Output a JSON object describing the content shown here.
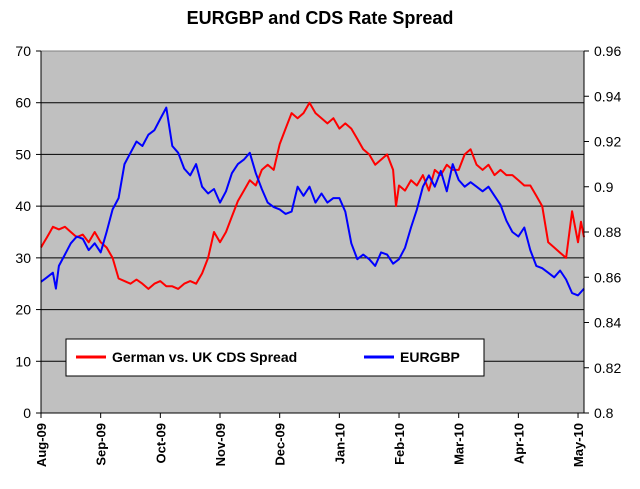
{
  "chart_data": {
    "type": "line",
    "title": "EURGBP and CDS Rate Spread",
    "categories": [
      "Aug-09",
      "Sep-09",
      "Oct-09",
      "Nov-09",
      "Dec-09",
      "Jan-10",
      "Feb-10",
      "Mar-10",
      "Apr-10",
      "May-10"
    ],
    "y_left": {
      "min": 0,
      "max": 70,
      "ticks": [
        "0",
        "10",
        "20",
        "30",
        "40",
        "50",
        "60",
        "70"
      ]
    },
    "y_right": {
      "min": 0.8,
      "max": 0.96,
      "ticks": [
        "0.8",
        "0.82",
        "0.84",
        "0.86",
        "0.88",
        "0.9",
        "0.92",
        "0.94",
        "0.96"
      ]
    },
    "grid": true,
    "legend_position": "bottom-left",
    "series": [
      {
        "name": "German vs. UK CDS Spread",
        "axis": "left",
        "color": "#ff0000",
        "x": [
          0,
          0.05,
          0.1,
          0.15,
          0.2,
          0.3,
          0.4,
          0.5,
          0.6,
          0.7,
          0.8,
          0.9,
          1.0,
          1.1,
          1.2,
          1.3,
          1.4,
          1.5,
          1.6,
          1.7,
          1.8,
          1.9,
          2.0,
          2.1,
          2.2,
          2.3,
          2.4,
          2.5,
          2.6,
          2.7,
          2.8,
          2.9,
          3.0,
          3.1,
          3.2,
          3.3,
          3.4,
          3.5,
          3.6,
          3.7,
          3.8,
          3.9,
          4.0,
          4.1,
          4.2,
          4.3,
          4.4,
          4.5,
          4.6,
          4.7,
          4.8,
          4.9,
          5.0,
          5.1,
          5.2,
          5.3,
          5.4,
          5.5,
          5.6,
          5.7,
          5.8,
          5.9,
          5.95,
          6.0,
          6.1,
          6.2,
          6.3,
          6.4,
          6.5,
          6.6,
          6.7,
          6.8,
          6.9,
          7.0,
          7.1,
          7.2,
          7.3,
          7.4,
          7.5,
          7.6,
          7.7,
          7.8,
          7.9,
          8.0,
          8.1,
          8.2,
          8.3,
          8.4,
          8.5,
          8.6,
          8.7,
          8.8,
          8.9,
          9.0,
          9.05,
          9.1
        ],
        "values": [
          32,
          33,
          34,
          35,
          36,
          35.5,
          36,
          35,
          34,
          34.5,
          33,
          35,
          33,
          32,
          30,
          26,
          25.5,
          25,
          25.8,
          25,
          24,
          25,
          25.5,
          24.5,
          24.5,
          24,
          25,
          25.5,
          25,
          27,
          30,
          35,
          33,
          35,
          38,
          41,
          43,
          45,
          44,
          47,
          48,
          47,
          52,
          55,
          58,
          57,
          58,
          60,
          58,
          57,
          56,
          57,
          55,
          56,
          55,
          53,
          51,
          50,
          48,
          49,
          50,
          47,
          40,
          44,
          43,
          45,
          44,
          46,
          43,
          47,
          46,
          48,
          47,
          47,
          50,
          51,
          48,
          47,
          48,
          46,
          47,
          46,
          46,
          45,
          44,
          44,
          42,
          40,
          33,
          32,
          31,
          30,
          39,
          33,
          37,
          34
        ]
      },
      {
        "name": "EURGBP",
        "axis": "right",
        "color": "#0000ff",
        "x": [
          0,
          0.1,
          0.2,
          0.25,
          0.3,
          0.4,
          0.5,
          0.6,
          0.7,
          0.8,
          0.9,
          1.0,
          1.1,
          1.2,
          1.3,
          1.4,
          1.5,
          1.6,
          1.7,
          1.8,
          1.9,
          2.0,
          2.1,
          2.2,
          2.3,
          2.4,
          2.5,
          2.6,
          2.7,
          2.8,
          2.9,
          3.0,
          3.1,
          3.2,
          3.3,
          3.4,
          3.5,
          3.6,
          3.7,
          3.8,
          3.9,
          4.0,
          4.1,
          4.2,
          4.3,
          4.4,
          4.5,
          4.6,
          4.7,
          4.8,
          4.9,
          5.0,
          5.1,
          5.2,
          5.3,
          5.4,
          5.5,
          5.6,
          5.7,
          5.8,
          5.9,
          6.0,
          6.1,
          6.2,
          6.3,
          6.4,
          6.5,
          6.6,
          6.7,
          6.8,
          6.9,
          7.0,
          7.1,
          7.2,
          7.3,
          7.4,
          7.5,
          7.6,
          7.7,
          7.8,
          7.9,
          8.0,
          8.1,
          8.2,
          8.3,
          8.4,
          8.5,
          8.6,
          8.7,
          8.8,
          8.9,
          9.0,
          9.1
        ],
        "values": [
          0.858,
          0.86,
          0.862,
          0.855,
          0.865,
          0.87,
          0.875,
          0.878,
          0.877,
          0.872,
          0.875,
          0.871,
          0.88,
          0.89,
          0.895,
          0.91,
          0.915,
          0.92,
          0.918,
          0.923,
          0.925,
          0.93,
          0.935,
          0.918,
          0.915,
          0.908,
          0.905,
          0.91,
          0.9,
          0.897,
          0.899,
          0.893,
          0.898,
          0.906,
          0.91,
          0.912,
          0.915,
          0.906,
          0.899,
          0.893,
          0.891,
          0.89,
          0.888,
          0.889,
          0.9,
          0.896,
          0.9,
          0.893,
          0.897,
          0.893,
          0.895,
          0.895,
          0.889,
          0.875,
          0.868,
          0.87,
          0.868,
          0.865,
          0.871,
          0.87,
          0.866,
          0.868,
          0.873,
          0.882,
          0.89,
          0.9,
          0.905,
          0.9,
          0.907,
          0.898,
          0.91,
          0.903,
          0.9,
          0.902,
          0.9,
          0.898,
          0.9,
          0.896,
          0.892,
          0.885,
          0.88,
          0.878,
          0.882,
          0.872,
          0.865,
          0.864,
          0.862,
          0.86,
          0.863,
          0.859,
          0.853,
          0.852,
          0.855
        ]
      }
    ]
  }
}
